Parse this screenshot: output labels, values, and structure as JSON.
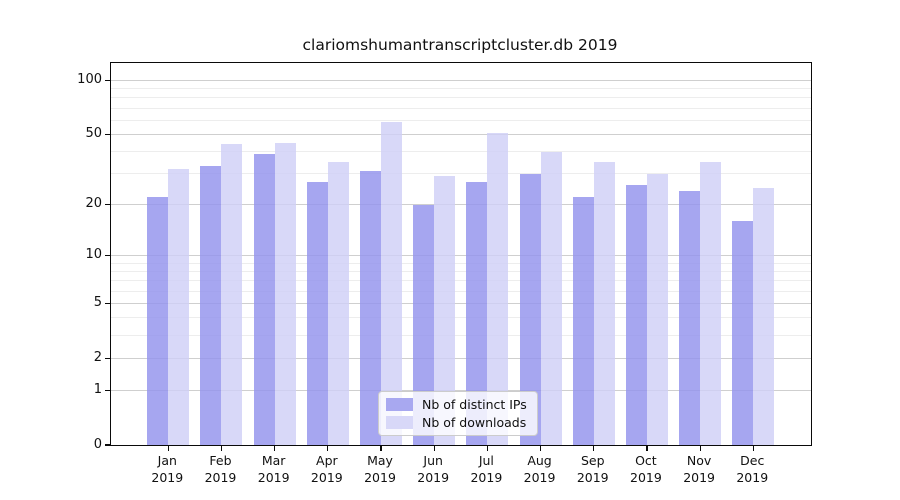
{
  "title": "clariomshumantranscriptcluster.db 2019",
  "chart_data": {
    "type": "bar",
    "categories": [
      "Jan",
      "Feb",
      "Mar",
      "Apr",
      "May",
      "Jun",
      "Jul",
      "Aug",
      "Sep",
      "Oct",
      "Nov",
      "Dec"
    ],
    "x_year_label": "2019",
    "series": [
      {
        "name": "Nb of distinct IPs",
        "color": "rgba(146,146,237,0.82)",
        "legend_color": "#a8a8f0",
        "values": [
          22,
          33,
          39,
          27,
          31,
          20,
          27,
          30,
          22,
          26,
          24,
          16
        ]
      },
      {
        "name": "Nb of downloads",
        "color": "rgba(206,206,246,0.80)",
        "legend_color": "#d8d8f8",
        "values": [
          32,
          44,
          45,
          35,
          59,
          29,
          51,
          40,
          35,
          30,
          35,
          25
        ]
      }
    ],
    "yscale": "log1p",
    "ylim": [
      0,
      125
    ],
    "yticks": [
      0,
      1,
      2,
      5,
      10,
      20,
      50,
      100
    ],
    "yticks_minor": [
      3,
      4,
      6,
      7,
      8,
      9,
      30,
      40,
      60,
      70,
      80,
      90
    ],
    "grid": "on",
    "legend_position": "lower center",
    "background": "#ffffff",
    "spine_color": "#0a0a0a"
  }
}
